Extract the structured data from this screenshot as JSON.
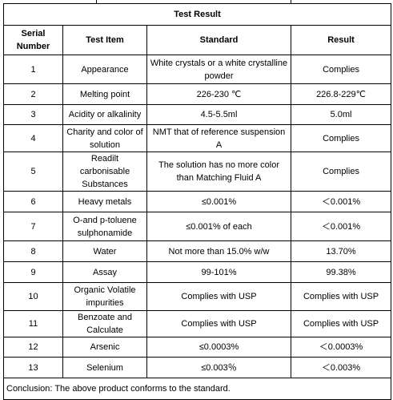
{
  "title": "Test Result",
  "header": [
    "Serial Number",
    "Test Item",
    "Standard",
    "Result"
  ],
  "rows": [
    [
      "1",
      "Appearance",
      "White crystals or a white crystalline powder",
      "Complies"
    ],
    [
      "2",
      "Melting point",
      "226-230 ℃",
      "226.8-229℃"
    ],
    [
      "3",
      "Acidity or alkalinity",
      "4.5-5.5ml",
      "5.0ml"
    ],
    [
      "4",
      "Charity and color of solution",
      "NMT that of reference suspension A",
      "Complies"
    ],
    [
      "5",
      "Readilt carbonisable Substances",
      "The solution has no more color than Matching Fluid A",
      "Complies"
    ],
    [
      "6",
      "Heavy metals",
      "≤0.001%",
      "＜0.001%"
    ],
    [
      "7",
      "O-and p-toluene sulphonamide",
      "≤0.001% of each",
      "＜0.001%"
    ],
    [
      "8",
      "Water",
      "Not more than 15.0% w/w",
      "13.70%"
    ],
    [
      "9",
      "Assay",
      "99-101%",
      "99.38%"
    ],
    [
      "10",
      "Organic Volatile impurities",
      "Complies with USP",
      "Complies with USP"
    ],
    [
      "11",
      "Benzoate and Calculate",
      "Complies with USP",
      "Complies with USP"
    ],
    [
      "12",
      "Arsenic",
      "≤0.0003%",
      "＜0.0003%"
    ],
    [
      "13",
      "Selenium",
      "≤0.003％",
      "＜0.003%"
    ]
  ],
  "conclusion": "Conclusion: The above product conforms to the standard."
}
